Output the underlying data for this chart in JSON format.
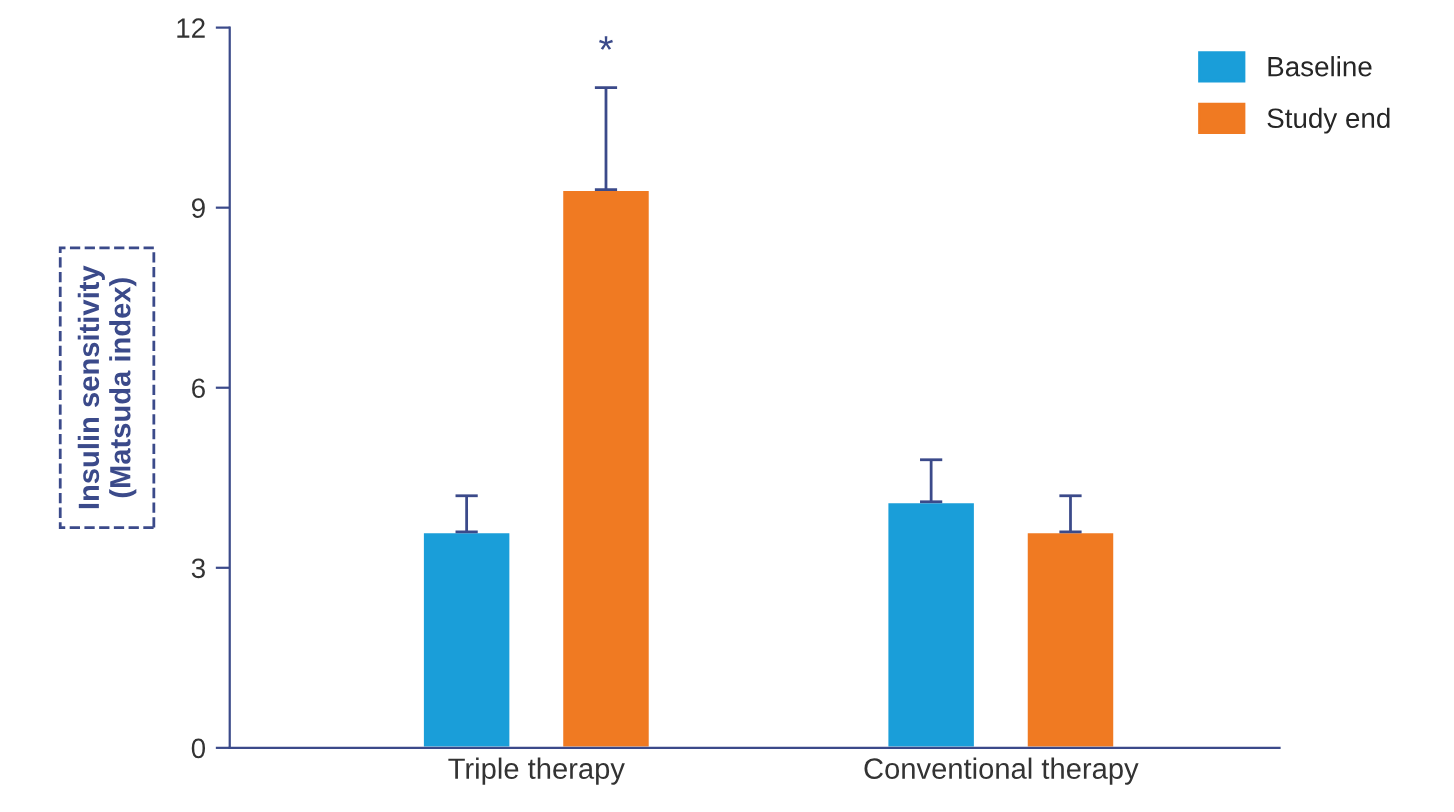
{
  "chart_data": {
    "type": "bar",
    "ylabel": "Insulin sensitivity\n(Matsuda index)",
    "categories": [
      "Triple therapy",
      "Conventional therapy"
    ],
    "series": [
      {
        "name": "Baseline",
        "color": "#1a9ed9",
        "values": [
          3.6,
          4.1
        ],
        "errors": [
          [
            3.6,
            4.2
          ],
          [
            4.1,
            4.8
          ]
        ]
      },
      {
        "name": "Study end",
        "color": "#f07a22",
        "values": [
          9.3,
          3.6
        ],
        "errors": [
          [
            9.3,
            11.0
          ],
          [
            3.6,
            4.2
          ]
        ]
      }
    ],
    "ylim": [
      0,
      12
    ],
    "yticks": [
      0,
      3,
      6,
      9,
      12
    ],
    "grid": false,
    "legend": "top right",
    "annotations": [
      "*"
    ]
  }
}
